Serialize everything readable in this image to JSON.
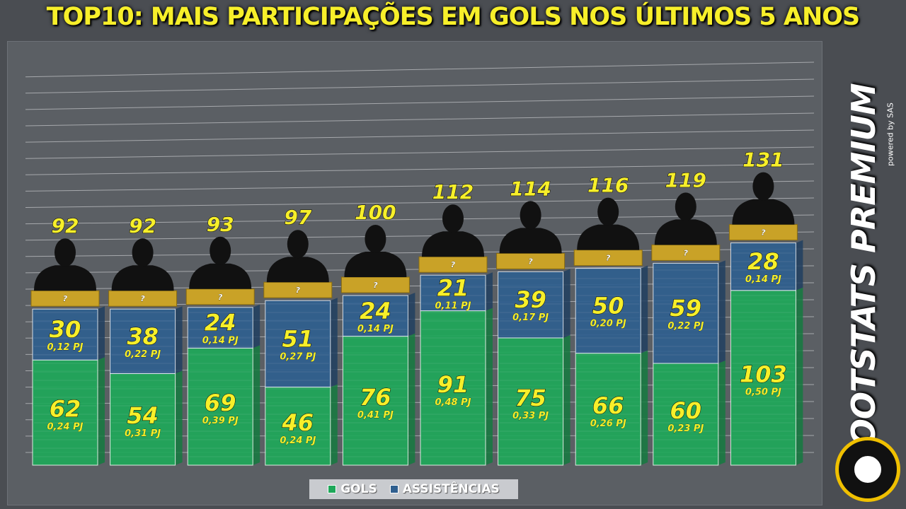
{
  "title": "TOP10: MAIS PARTICIPAÇÕES EM GOLS NOS ÚLTIMOS 5 ANOS",
  "brand": {
    "name": "FOOTSTATS PREMIUM",
    "powered_by": "powered by SAS"
  },
  "colors": {
    "goals": "#1fa85a",
    "assists": "#2f5f8f",
    "label_plate": "#c9a227",
    "value_text": "#f7ef2a",
    "title": "#f7ef2a"
  },
  "chart_data": {
    "type": "bar",
    "stacked": true,
    "categories": [
      "?",
      "?",
      "?",
      "?",
      "?",
      "?",
      "?",
      "?",
      "?",
      "?"
    ],
    "totals": [
      92,
      92,
      93,
      97,
      100,
      112,
      114,
      116,
      119,
      131
    ],
    "series": [
      {
        "name": "GOLS",
        "values": [
          62,
          54,
          69,
          46,
          76,
          91,
          75,
          66,
          60,
          103
        ],
        "per_game": [
          "0,24 PJ",
          "0,31 PJ",
          "0,39 PJ",
          "0,24 PJ",
          "0,41 PJ",
          "0,48 PJ",
          "0,33 PJ",
          "0,26 PJ",
          "0,23 PJ",
          "0,50 PJ"
        ]
      },
      {
        "name": "ASSISTÊNCIAS",
        "values": [
          30,
          38,
          24,
          51,
          24,
          21,
          39,
          50,
          59,
          28
        ],
        "per_game": [
          "0,12 PJ",
          "0,22 PJ",
          "0,14 PJ",
          "0,27 PJ",
          "0,14 PJ",
          "0,11 PJ",
          "0,17 PJ",
          "0,20 PJ",
          "0,22 PJ",
          "0,14 PJ"
        ]
      }
    ],
    "legend": "bottom",
    "grid": true
  }
}
